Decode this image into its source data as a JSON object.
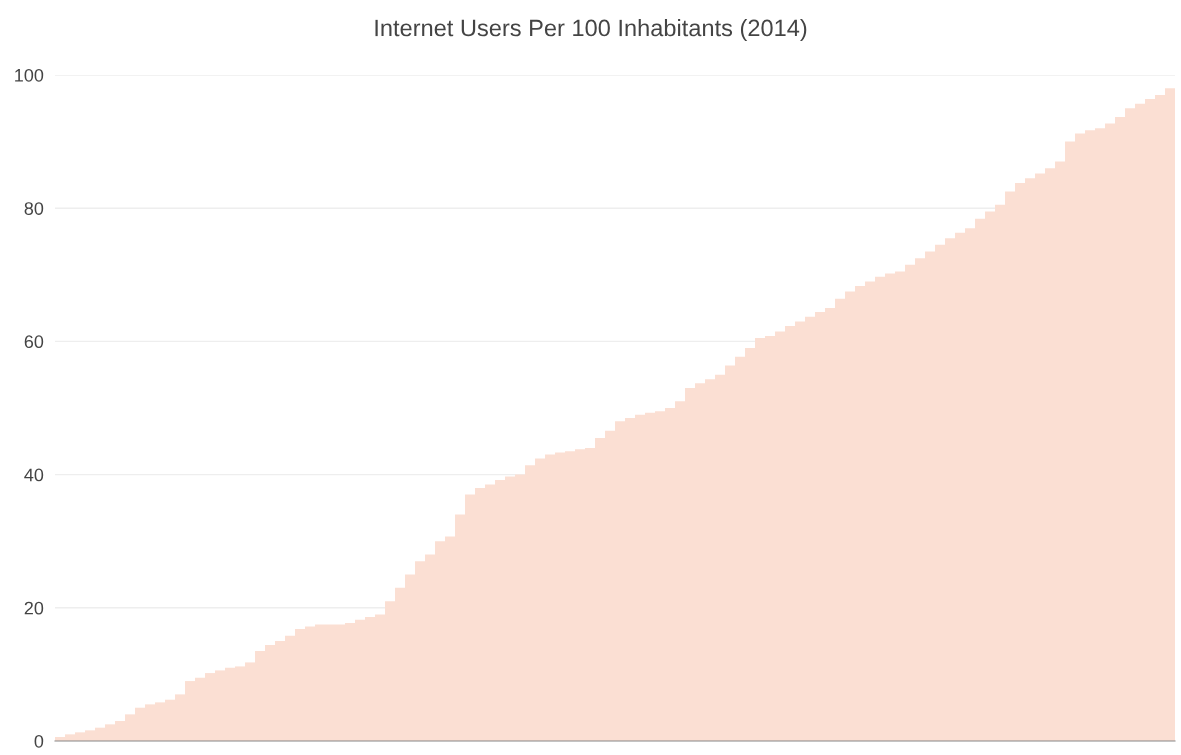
{
  "chart_data": {
    "type": "bar",
    "title": "Internet Users Per 100 Inhabitants (2014)",
    "categories": [
      null,
      null,
      null,
      null,
      null,
      null,
      null,
      null,
      null,
      null,
      null,
      null,
      null,
      null,
      null,
      null,
      null,
      null,
      null,
      null,
      null,
      null,
      null,
      null,
      null,
      null,
      null,
      null,
      null,
      null,
      null,
      null,
      null,
      null,
      null,
      null,
      null,
      null,
      null,
      null,
      null,
      null,
      null,
      null,
      null,
      null,
      null,
      null,
      null,
      null,
      null,
      null,
      null,
      null,
      null,
      null,
      null,
      null,
      null,
      null,
      null,
      null,
      null,
      null,
      null,
      null,
      null,
      null,
      null,
      null,
      null,
      null,
      null,
      null,
      null,
      null,
      null,
      null,
      null,
      null,
      null,
      null,
      null,
      null,
      null,
      null,
      null,
      null,
      null,
      null,
      null,
      null,
      null,
      null,
      null,
      null,
      null,
      null,
      null,
      null,
      null,
      null,
      null,
      null,
      null,
      null,
      null,
      null,
      null,
      null,
      null,
      null
    ],
    "values": [
      0.6,
      1.0,
      1.3,
      1.6,
      2.0,
      2.5,
      3.0,
      4.0,
      5.0,
      5.5,
      5.8,
      6.2,
      7.0,
      9.0,
      9.5,
      10.2,
      10.6,
      11.0,
      11.2,
      11.8,
      13.5,
      14.4,
      15.0,
      15.8,
      16.8,
      17.2,
      17.5,
      17.5,
      17.5,
      17.7,
      18.2,
      18.6,
      19.0,
      21.0,
      23.0,
      25.0,
      27.0,
      28.0,
      30.0,
      30.7,
      34.0,
      37.0,
      38.0,
      38.5,
      39.2,
      39.7,
      40.0,
      41.4,
      42.4,
      43.0,
      43.3,
      43.5,
      43.8,
      44.0,
      45.5,
      46.6,
      48.0,
      48.5,
      49.0,
      49.3,
      49.5,
      50.0,
      51.0,
      53.0,
      53.7,
      54.3,
      55.0,
      56.4,
      57.7,
      59.0,
      60.5,
      60.8,
      61.5,
      62.3,
      63.0,
      63.7,
      64.4,
      65.0,
      66.4,
      67.5,
      68.3,
      69.0,
      69.7,
      70.2,
      70.5,
      71.5,
      72.5,
      73.5,
      74.5,
      75.5,
      76.3,
      77.0,
      78.4,
      79.5,
      80.5,
      82.5,
      83.8,
      84.5,
      85.2,
      86.0,
      87.0,
      90.0,
      91.2,
      91.7,
      92.0,
      92.7,
      93.7,
      95.0,
      95.7,
      96.4,
      97.0,
      98.0
    ],
    "color": "#fbdfd3",
    "ylim": [
      0,
      100
    ],
    "yticks": [
      0,
      20,
      40,
      60,
      80,
      100
    ],
    "grid": "y",
    "tick_labels": "y"
  }
}
